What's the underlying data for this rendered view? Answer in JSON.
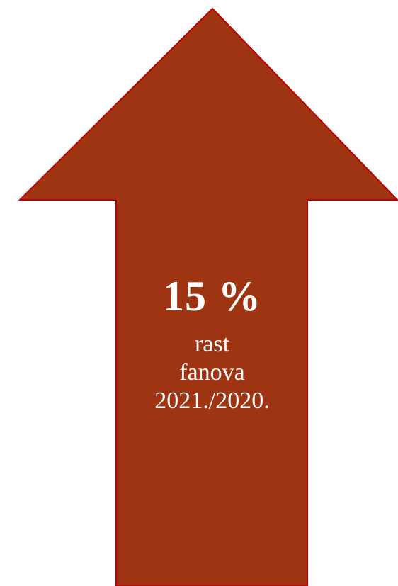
{
  "graphic": {
    "icon": "up-arrow-icon",
    "fill_color": "#9e3411",
    "stroke_color": "#c00000",
    "value": "15 %",
    "caption_lines": [
      "rast",
      "fanova",
      "2021./2020."
    ]
  }
}
